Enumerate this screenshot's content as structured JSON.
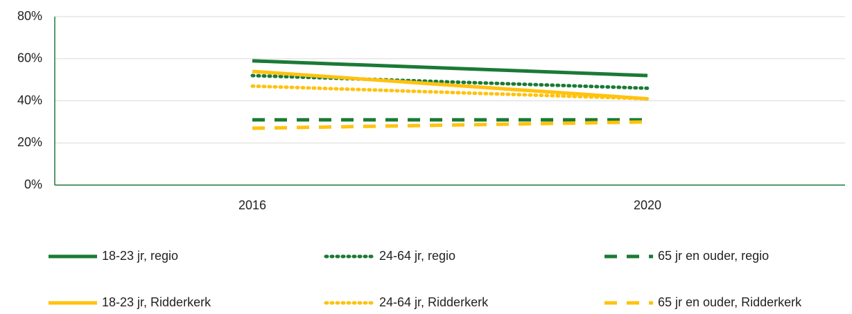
{
  "chart_data": {
    "type": "line",
    "categories": [
      "2016",
      "2020"
    ],
    "series": [
      {
        "name": "18-23 jr, regio",
        "color": "#1a7a35",
        "dash": "solid",
        "values": [
          59,
          52
        ]
      },
      {
        "name": "24-64 jr, regio",
        "color": "#1a7a35",
        "dash": "dotted",
        "values": [
          52,
          46
        ]
      },
      {
        "name": "65 jr en ouder, regio",
        "color": "#1a7a35",
        "dash": "dashed",
        "values": [
          31,
          31
        ]
      },
      {
        "name": "18-23 jr, Ridderkerk",
        "color": "#ffc20e",
        "dash": "solid",
        "values": [
          54,
          41
        ]
      },
      {
        "name": "24-64 jr, Ridderkerk",
        "color": "#ffc20e",
        "dash": "dotted",
        "values": [
          47,
          41
        ]
      },
      {
        "name": "65 jr en ouder, Ridderkerk",
        "color": "#ffc20e",
        "dash": "dashed",
        "values": [
          27,
          30
        ]
      }
    ],
    "ylim": [
      0,
      80
    ],
    "yticks": [
      {
        "value": 0,
        "label": "0%"
      },
      {
        "value": 20,
        "label": "20%"
      },
      {
        "value": 40,
        "label": "40%"
      },
      {
        "value": 60,
        "label": "60%"
      },
      {
        "value": 80,
        "label": "80%"
      }
    ],
    "grid": true,
    "legend": "bottom"
  }
}
